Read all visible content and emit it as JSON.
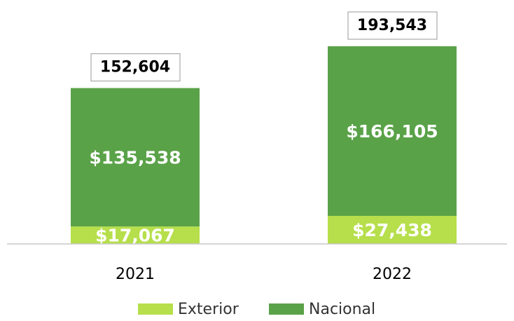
{
  "chart_data": {
    "type": "stacked_bar",
    "categories": [
      "2021",
      "2022"
    ],
    "series": [
      {
        "name": "Exterior",
        "color": "#b6df4b",
        "values": [
          17067,
          27438
        ],
        "value_labels": [
          "$17,067",
          "$27,438"
        ]
      },
      {
        "name": "Nacional",
        "color": "#5aa248",
        "values": [
          135538,
          166105
        ],
        "value_labels": [
          "$135,538",
          "$166,105"
        ]
      }
    ],
    "totals": {
      "values": [
        152604,
        193543
      ],
      "value_labels": [
        "152,604",
        "193,543"
      ]
    },
    "legend": "bottom"
  }
}
